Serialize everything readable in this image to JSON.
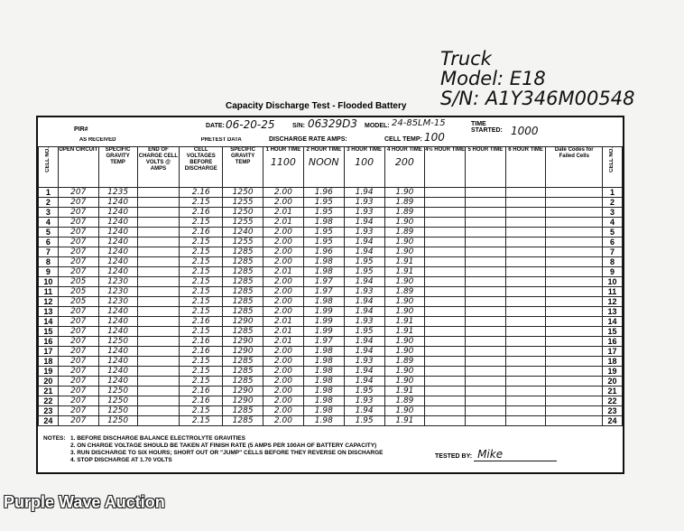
{
  "annotation": {
    "line1": "Truck",
    "line2": "Model: E18",
    "line3": "S/N: A1Y346M00548"
  },
  "title": "Capacity Discharge Test - Flooded Battery",
  "header": {
    "pir_label": "PIR#",
    "date_label": "DATE:",
    "date": "06-20-25",
    "sn_label": "S/N:",
    "sn": "06329D3",
    "model_label": "MODEL:",
    "model": "24-85LM-15",
    "time_started_label": "TIME STARTED:",
    "time_started": "1000",
    "discharge_rate_label": "DISCHARGE RATE AMPS:",
    "cell_temp_label": "CELL TEMP:",
    "cell_temp": "100"
  },
  "groups": {
    "as_received": "AS RECEIVED",
    "pretest": "PRETEST DATA"
  },
  "columns": [
    "CELL NO.",
    "OPEN CIRCUIT",
    "SPECIFIC GRAVITY TEMP",
    "END OF CHARGE CELL VOLTS @ AMPS",
    "CELL VOLTAGES BEFORE DISCHARGE",
    "SPECIFIC GRAVITY TEMP",
    "1 HOUR TIME",
    "2 HOUR TIME",
    "3 HOUR TIME",
    "4 HOUR TIME",
    "4½ HOUR TIME",
    "5 HOUR TIME",
    "6 HOUR TIME",
    "Date Codes for Failed Cells",
    "CELL NO."
  ],
  "time_entries": [
    "1100",
    "NOON",
    "100",
    "200"
  ],
  "rows": [
    [
      "207",
      "1235",
      "",
      "2.16",
      "1250",
      "2.00",
      "1.96",
      "1.94",
      "1.90"
    ],
    [
      "207",
      "1240",
      "",
      "2.15",
      "1255",
      "2.00",
      "1.95",
      "1.93",
      "1.89"
    ],
    [
      "207",
      "1240",
      "",
      "2.16",
      "1250",
      "2.01",
      "1.95",
      "1.93",
      "1.89"
    ],
    [
      "207",
      "1240",
      "",
      "2.15",
      "1255",
      "2.01",
      "1.98",
      "1.94",
      "1.90"
    ],
    [
      "207",
      "1240",
      "",
      "2.16",
      "1240",
      "2.00",
      "1.95",
      "1.93",
      "1.89"
    ],
    [
      "207",
      "1240",
      "",
      "2.15",
      "1255",
      "2.00",
      "1.95",
      "1.94",
      "1.90"
    ],
    [
      "207",
      "1240",
      "",
      "2.15",
      "1285",
      "2.00",
      "1.96",
      "1.94",
      "1.90"
    ],
    [
      "207",
      "1240",
      "",
      "2.15",
      "1285",
      "2.00",
      "1.98",
      "1.95",
      "1.91"
    ],
    [
      "207",
      "1240",
      "",
      "2.15",
      "1285",
      "2.01",
      "1.98",
      "1.95",
      "1.91"
    ],
    [
      "205",
      "1230",
      "",
      "2.15",
      "1285",
      "2.00",
      "1.97",
      "1.94",
      "1.90"
    ],
    [
      "205",
      "1230",
      "",
      "2.15",
      "1285",
      "2.00",
      "1.97",
      "1.93",
      "1.89"
    ],
    [
      "205",
      "1230",
      "",
      "2.15",
      "1285",
      "2.00",
      "1.98",
      "1.94",
      "1.90"
    ],
    [
      "207",
      "1240",
      "",
      "2.15",
      "1285",
      "2.00",
      "1.99",
      "1.94",
      "1.90"
    ],
    [
      "207",
      "1240",
      "",
      "2.16",
      "1290",
      "2.01",
      "1.99",
      "1.93",
      "1.91"
    ],
    [
      "207",
      "1240",
      "",
      "2.15",
      "1285",
      "2.01",
      "1.99",
      "1.95",
      "1.91"
    ],
    [
      "207",
      "1250",
      "",
      "2.16",
      "1290",
      "2.01",
      "1.97",
      "1.94",
      "1.90"
    ],
    [
      "207",
      "1240",
      "",
      "2.16",
      "1290",
      "2.00",
      "1.98",
      "1.94",
      "1.90"
    ],
    [
      "207",
      "1240",
      "",
      "2.15",
      "1285",
      "2.00",
      "1.98",
      "1.93",
      "1.89"
    ],
    [
      "207",
      "1240",
      "",
      "2.15",
      "1285",
      "2.00",
      "1.98",
      "1.94",
      "1.90"
    ],
    [
      "207",
      "1240",
      "",
      "2.15",
      "1285",
      "2.00",
      "1.98",
      "1.94",
      "1.90"
    ],
    [
      "207",
      "1250",
      "",
      "2.16",
      "1290",
      "2.00",
      "1.98",
      "1.95",
      "1.91"
    ],
    [
      "207",
      "1250",
      "",
      "2.16",
      "1290",
      "2.00",
      "1.98",
      "1.93",
      "1.89"
    ],
    [
      "207",
      "1250",
      "",
      "2.15",
      "1285",
      "2.00",
      "1.98",
      "1.94",
      "1.90"
    ],
    [
      "207",
      "1250",
      "",
      "2.15",
      "1285",
      "2.00",
      "1.98",
      "1.95",
      "1.91"
    ]
  ],
  "notes": {
    "label": "NOTES:",
    "items": [
      "1. BEFORE DISCHARGE BALANCE ELECTROLYTE GRAVITIES",
      "2. ON CHARGE VOLTAGE SHOULD BE TAKEN AT FINISH RATE (5 AMPS PER 100AH OF BATTERY CAPACITY)",
      "3. RUN DISCHARGE TO SIX HOURS; SHORT OUT OR \"JUMP\" CELLS BEFORE THEY REVERSE ON DISCHARGE",
      "4. STOP DISCHARGE AT 1.70 VOLTS"
    ]
  },
  "tested_by_label": "TESTED BY:",
  "tested_by": "Mike",
  "watermark": "Purple Wave Auction"
}
